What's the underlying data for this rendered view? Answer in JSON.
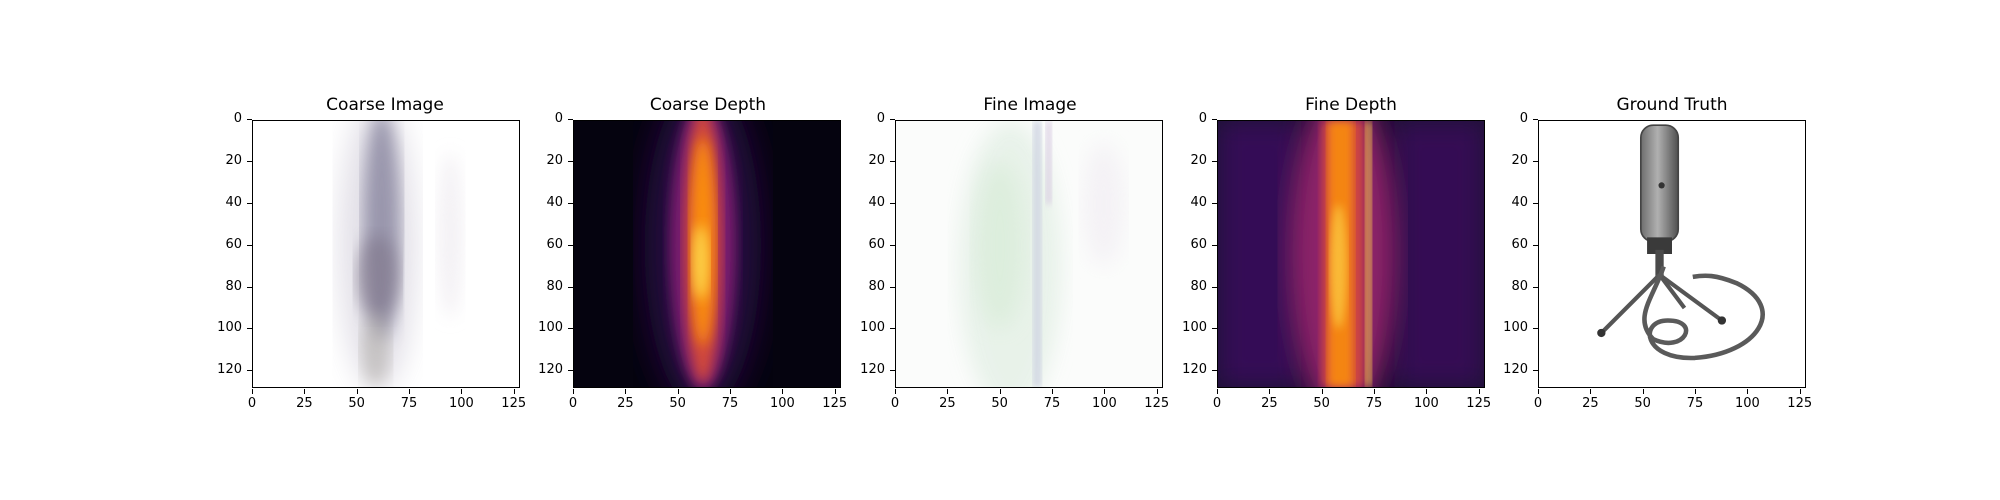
{
  "panels": [
    {
      "id": "coarse-image",
      "title": "Coarse Image"
    },
    {
      "id": "coarse-depth",
      "title": "Coarse Depth"
    },
    {
      "id": "fine-image",
      "title": "Fine Image"
    },
    {
      "id": "fine-depth",
      "title": "Fine Depth"
    },
    {
      "id": "ground-truth",
      "title": "Ground Truth"
    }
  ],
  "axes": {
    "y_ticks": [
      "0",
      "20",
      "40",
      "60",
      "80",
      "100",
      "120"
    ],
    "x_ticks": [
      "0",
      "25",
      "50",
      "75",
      "100",
      "125"
    ]
  },
  "colors": {
    "depth_dark": "#000004",
    "depth_mid": "#7a1f6e",
    "depth_hot": "#f98c0a",
    "depth_peak": "#fcffa4"
  }
}
